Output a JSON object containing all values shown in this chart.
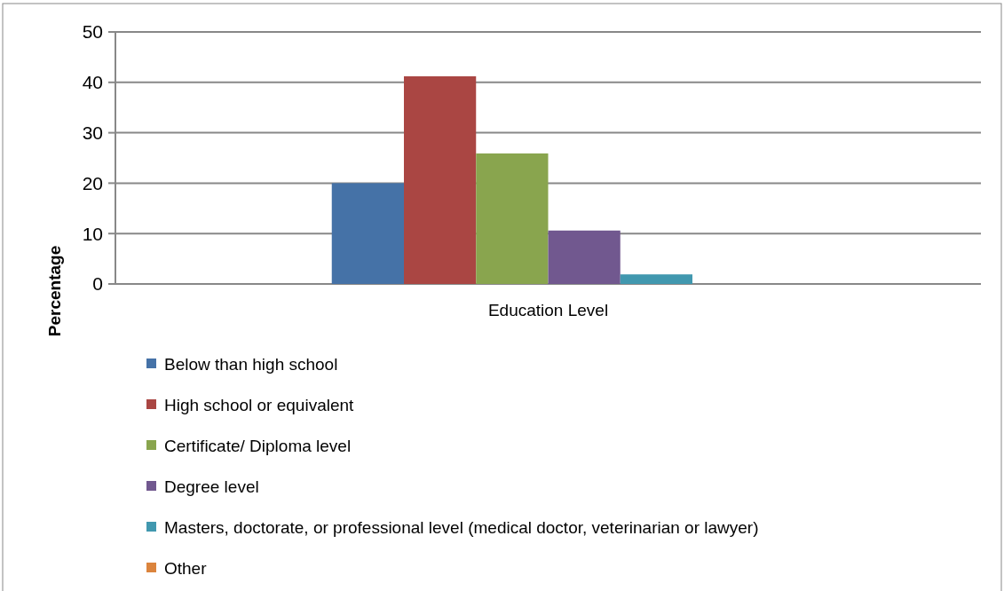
{
  "chart_data": {
    "type": "bar",
    "ylabel": "Percentage",
    "categories": [
      "Education Level"
    ],
    "series": [
      {
        "name": "Below than high school",
        "color": "#4572a7",
        "values": [
          20
        ]
      },
      {
        "name": "High school or equivalent",
        "color": "#aa4643",
        "values": [
          41.2
        ]
      },
      {
        "name": "Certificate/ Diploma level",
        "color": "#89a54e",
        "values": [
          25.9
        ]
      },
      {
        "name": "Degree level",
        "color": "#71588f",
        "values": [
          10.6
        ]
      },
      {
        "name": "Masters, doctorate, or professional level (medical doctor, veterinarian or lawyer)",
        "color": "#4198af",
        "values": [
          1.9
        ]
      },
      {
        "name": "Other",
        "color": "#db843d",
        "values": [
          0
        ]
      }
    ],
    "ylim": [
      0,
      50
    ],
    "yticks": [
      0,
      10,
      20,
      30,
      40,
      50
    ],
    "grid": "y",
    "legend": "bottom"
  }
}
